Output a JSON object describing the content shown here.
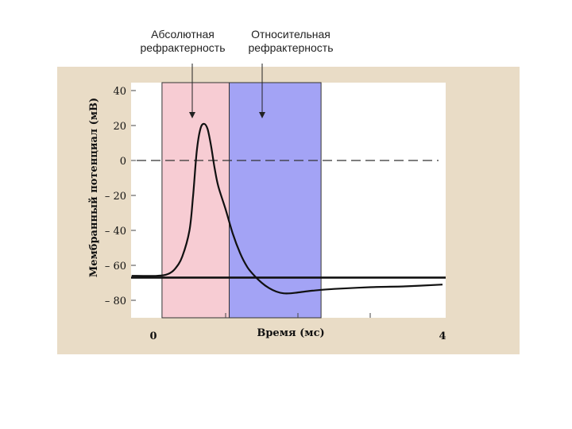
{
  "chart_data": {
    "type": "line",
    "title": "",
    "xlabel": "Время (мс)",
    "ylabel": "Мембранный потенциал (мВ)",
    "xlim": [
      0,
      4
    ],
    "ylim": [
      -85,
      42
    ],
    "x_tick_labels": [
      {
        "x": 0,
        "label": "0"
      },
      {
        "x": 4,
        "label": "4"
      }
    ],
    "x_minor_ticks": [
      1,
      2,
      3
    ],
    "y_ticks": [
      {
        "y": 40,
        "label": "40"
      },
      {
        "y": 20,
        "label": "20"
      },
      {
        "y": 0,
        "label": "0"
      },
      {
        "y": -20,
        "label": "– 20"
      },
      {
        "y": -40,
        "label": "– 40"
      },
      {
        "y": -60,
        "label": "– 60"
      },
      {
        "y": -80,
        "label": "– 80"
      }
    ],
    "regions": [
      {
        "name": "Абсолютная рефрактерность",
        "line1": "Абсолютная",
        "line2": "рефрактерность",
        "x_start": 0.12,
        "x_end": 1.05,
        "color": "#f7ccd3"
      },
      {
        "name": "Относительная рефрактерность",
        "line1": "Относительная",
        "line2": "рефрактерность",
        "x_start": 1.05,
        "x_end": 2.32,
        "color": "#a3a3f5"
      }
    ],
    "reference_lines": [
      {
        "y": 0,
        "style": "dashed"
      },
      {
        "y": -67,
        "style": "solid"
      }
    ],
    "series": [
      {
        "x": [
          -0.3,
          0.05,
          0.2,
          0.3,
          0.4,
          0.5,
          0.55,
          0.6,
          0.65,
          0.7,
          0.75,
          0.8,
          0.85,
          0.9,
          1.0,
          1.1,
          1.2,
          1.3,
          1.4,
          1.5,
          1.6,
          1.7,
          1.8,
          1.9,
          2.0,
          2.2,
          2.5,
          3.0,
          3.5,
          4.0
        ],
        "y": [
          -66,
          -66,
          -65,
          -62,
          -55,
          -40,
          -20,
          5,
          18,
          21,
          18,
          8,
          -5,
          -15,
          -28,
          -42,
          -53,
          -61,
          -66,
          -70,
          -73,
          -75,
          -76,
          -76,
          -75.5,
          -74.5,
          -73.5,
          -72.5,
          -72,
          -71
        ]
      }
    ],
    "grid": false
  }
}
